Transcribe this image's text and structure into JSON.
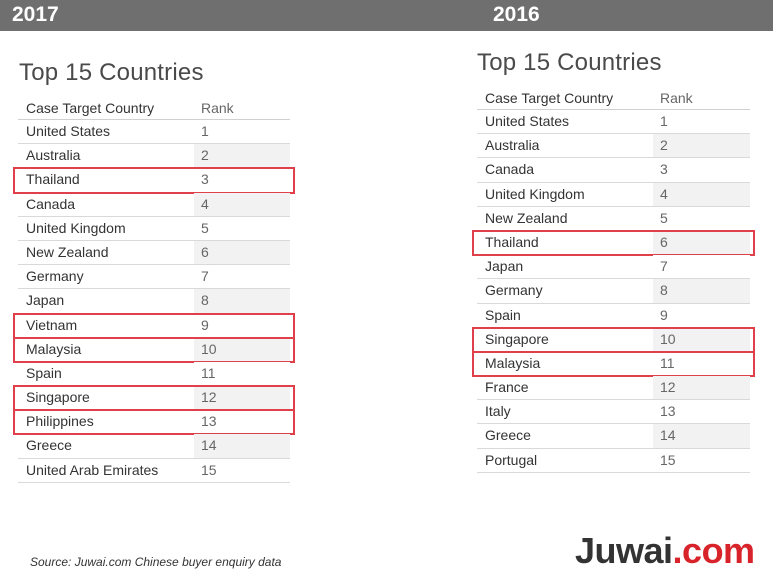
{
  "years": {
    "left": "2017",
    "right": "2016"
  },
  "left_panel": {
    "title": "Top 15 Countries",
    "header": {
      "country": "Case Target Country",
      "rank": "Rank"
    },
    "rows": [
      {
        "country": "United States",
        "rank": "1"
      },
      {
        "country": "Australia",
        "rank": "2"
      },
      {
        "country": "Thailand",
        "rank": "3",
        "highlight": true
      },
      {
        "country": "Canada",
        "rank": "4"
      },
      {
        "country": "United Kingdom",
        "rank": "5"
      },
      {
        "country": "New Zealand",
        "rank": "6"
      },
      {
        "country": "Germany",
        "rank": "7"
      },
      {
        "country": "Japan",
        "rank": "8"
      },
      {
        "country": "Vietnam",
        "rank": "9",
        "highlight": true
      },
      {
        "country": "Malaysia",
        "rank": "10",
        "highlight": true
      },
      {
        "country": "Spain",
        "rank": "11"
      },
      {
        "country": "Singapore",
        "rank": "12",
        "highlight": true
      },
      {
        "country": "Philippines",
        "rank": "13",
        "highlight": true
      },
      {
        "country": "Greece",
        "rank": "14"
      },
      {
        "country": "United Arab Emirates",
        "rank": "15"
      }
    ]
  },
  "right_panel": {
    "title": "Top 15 Countries",
    "header": {
      "country": "Case Target Country",
      "rank": "Rank"
    },
    "rows": [
      {
        "country": "United States",
        "rank": "1"
      },
      {
        "country": "Australia",
        "rank": "2"
      },
      {
        "country": "Canada",
        "rank": "3"
      },
      {
        "country": "United Kingdom",
        "rank": "4"
      },
      {
        "country": "New Zealand",
        "rank": "5"
      },
      {
        "country": "Thailand",
        "rank": "6",
        "highlight": true
      },
      {
        "country": "Japan",
        "rank": "7"
      },
      {
        "country": "Germany",
        "rank": "8"
      },
      {
        "country": "Spain",
        "rank": "9"
      },
      {
        "country": "Singapore",
        "rank": "10",
        "highlight": true
      },
      {
        "country": "Malaysia",
        "rank": "11",
        "highlight": true
      },
      {
        "country": "France",
        "rank": "12"
      },
      {
        "country": "Italy",
        "rank": "13"
      },
      {
        "country": "Greece",
        "rank": "14"
      },
      {
        "country": "Portugal",
        "rank": "15"
      }
    ]
  },
  "footer": {
    "source": "Source: Juwai.com Chinese buyer enquiry data",
    "logo_part1": "Juwai",
    "logo_part2": ".com"
  },
  "colors": {
    "highlight": "#e0404a",
    "logo_accent": "#d8232a",
    "year_bar": "#6f6f6f"
  }
}
